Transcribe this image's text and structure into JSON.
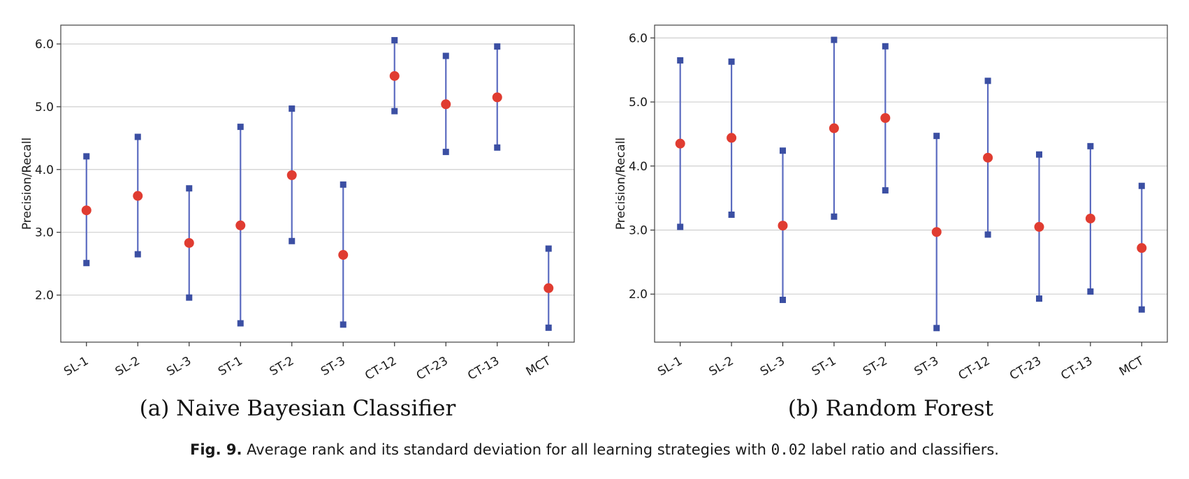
{
  "caption": {
    "label": "Fig. 9.",
    "text_before": "Average rank and its standard deviation for all learning strategies with",
    "code": "0.02",
    "text_after": "label ratio and classifiers."
  },
  "chart_data": [
    {
      "type": "errorbar",
      "subcaption": "(a) Naive Bayesian Classifier",
      "ylabel": "Precision/Recall",
      "ylim": [
        1.25,
        6.3
      ],
      "yticks": [
        "2.0",
        "3.0",
        "4.0",
        "5.0",
        "6.0"
      ],
      "grid": "horizontal",
      "categories": [
        "SL-1",
        "SL-2",
        "SL-3",
        "ST-1",
        "ST-2",
        "ST-3",
        "CT-12",
        "CT-23",
        "CT-13",
        "MCT"
      ],
      "mean": [
        3.35,
        3.58,
        2.83,
        3.11,
        3.91,
        2.64,
        5.49,
        5.04,
        5.15,
        2.11
      ],
      "upper": [
        4.21,
        4.52,
        3.7,
        4.68,
        4.97,
        3.76,
        6.06,
        5.81,
        5.96,
        2.74
      ],
      "lower": [
        2.51,
        2.65,
        1.96,
        1.55,
        2.86,
        1.53,
        4.93,
        4.28,
        4.35,
        1.48
      ],
      "colors": {
        "mean": "#e03c31",
        "bounds": "#3b4fa3",
        "line": "#5b6bc0"
      }
    },
    {
      "type": "errorbar",
      "subcaption": "(b) Random Forest",
      "ylabel": "Precision/Recall",
      "ylim": [
        1.25,
        6.2
      ],
      "yticks": [
        "2.0",
        "3.0",
        "4.0",
        "5.0",
        "6.0"
      ],
      "grid": "horizontal",
      "categories": [
        "SL-1",
        "SL-2",
        "SL-3",
        "ST-1",
        "ST-2",
        "ST-3",
        "CT-12",
        "CT-23",
        "CT-13",
        "MCT"
      ],
      "mean": [
        4.35,
        4.44,
        3.07,
        4.59,
        4.75,
        2.97,
        4.13,
        3.05,
        3.18,
        2.72
      ],
      "upper": [
        5.65,
        5.63,
        4.24,
        5.97,
        5.87,
        4.47,
        5.33,
        4.18,
        4.31,
        3.69
      ],
      "lower": [
        3.05,
        3.24,
        1.91,
        3.21,
        3.62,
        1.47,
        2.93,
        1.93,
        2.04,
        1.76
      ],
      "colors": {
        "mean": "#e03c31",
        "bounds": "#3b4fa3",
        "line": "#5b6bc0"
      }
    }
  ]
}
